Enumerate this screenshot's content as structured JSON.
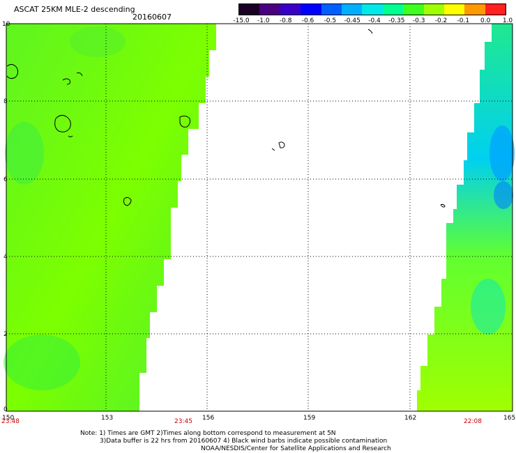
{
  "header": {
    "title": "ASCAT 25KM MLE-2 descending",
    "date": "20160607"
  },
  "legend": {
    "labels": [
      "-15.0",
      "-1.0",
      "-0.8",
      "-0.6",
      "-0.5",
      "-0.45",
      "-0.4",
      "-0.35",
      "-0.3",
      "-0.2",
      "-0.1",
      "0.0",
      "1.0"
    ],
    "colors": [
      "#1a0026",
      "#4a0080",
      "#3a00c8",
      "#0000ff",
      "#0060ff",
      "#00b0ff",
      "#00e8e8",
      "#00ff90",
      "#40ff20",
      "#a0ff00",
      "#ffff00",
      "#ff9900",
      "#ff2020"
    ]
  },
  "axes": {
    "x_ticks": [
      "150",
      "153",
      "156",
      "159",
      "162",
      "165"
    ],
    "y_ticks": [
      "0",
      "2",
      "4",
      "6",
      "8",
      "10"
    ]
  },
  "times": {
    "t1": "23:48",
    "t2": "23:45",
    "t3": "22:08"
  },
  "notes": {
    "line1": "Note: 1) Times are GMT 2)Times along bottom correspond to measurement at 5N",
    "line2": "3)Data buffer is 22 hrs from 20160607 4) Black wind barbs indicate possible contamination",
    "line3": "NOAA/NESDIS/Center for Satellite Applications and Research"
  },
  "colors": {
    "swath_green": "#7fff00",
    "swath_bright": "#40f020",
    "swath_cyan": "#00f0d0",
    "swath_blue": "#00a0ff",
    "time_red": "#cc0000"
  }
}
